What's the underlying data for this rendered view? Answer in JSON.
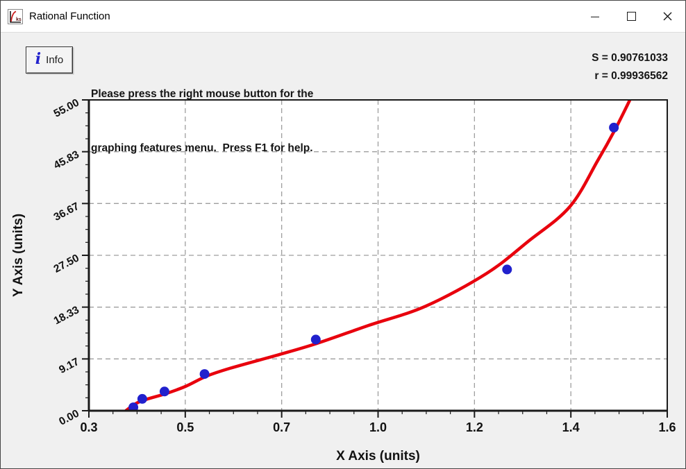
{
  "window": {
    "title": "Rational Function",
    "app_icon_text": "ks",
    "controls": [
      {
        "name": "minimize"
      },
      {
        "name": "maximize"
      },
      {
        "name": "close"
      }
    ]
  },
  "toolbar": {
    "info_icon_glyph": "i",
    "info_label": "Info",
    "instructions_line1": "Please press the right mouse button for the",
    "instructions_line2": "graphing features menu.  Press F1 for help.",
    "stat_s": "S = 0.90761033",
    "stat_r": "r = 0.99936562"
  },
  "chart_data": {
    "type": "scatter",
    "title": "",
    "xlabel": "X Axis (units)",
    "ylabel": "Y Axis (units)",
    "xlim": [
      0.3,
      1.6
    ],
    "ylim": [
      0,
      55
    ],
    "x_tick_labels": [
      "0.3",
      "0.5",
      "0.7",
      "1.0",
      "1.2",
      "1.4",
      "1.6"
    ],
    "y_tick_labels": [
      "55.00",
      "45.83",
      "36.67",
      "27.50",
      "18.33",
      "9.17",
      "0.00"
    ],
    "grid": "dashed interior gridlines at every major tick",
    "minor_ticks_per_interval": 3,
    "legend": "none",
    "colors": {
      "points": "#2121cd",
      "curve": "#e8000d",
      "grid": "#9e9e9e",
      "axis": "#1a1a1a",
      "plot_bg": "#ffffff",
      "window_bg": "#f0f0f0"
    },
    "series": [
      {
        "name": "observed-data",
        "type": "scatter",
        "color": "#2121cd",
        "points": [
          [
            0.4,
            0.6
          ],
          [
            0.42,
            2.1
          ],
          [
            0.47,
            3.4
          ],
          [
            0.56,
            6.5
          ],
          [
            0.81,
            12.6
          ],
          [
            1.24,
            25.0
          ],
          [
            1.48,
            50.1
          ]
        ]
      },
      {
        "name": "rational-function-fit",
        "type": "line",
        "color": "#e8000d",
        "points": [
          [
            0.383,
            0.0
          ],
          [
            0.414,
            1.6
          ],
          [
            0.472,
            3.0
          ],
          [
            0.517,
            4.3
          ],
          [
            0.564,
            6.1
          ],
          [
            0.617,
            7.5
          ],
          [
            0.726,
            9.9
          ],
          [
            0.812,
            11.9
          ],
          [
            0.929,
            15.1
          ],
          [
            1.057,
            18.5
          ],
          [
            1.194,
            24.3
          ],
          [
            1.288,
            30.0
          ],
          [
            1.381,
            36.1
          ],
          [
            1.444,
            44.3
          ],
          [
            1.483,
            49.8
          ],
          [
            1.516,
            55.0
          ]
        ]
      }
    ],
    "fit_statistics": {
      "S": "0.90761033",
      "r": "0.99936562"
    }
  }
}
